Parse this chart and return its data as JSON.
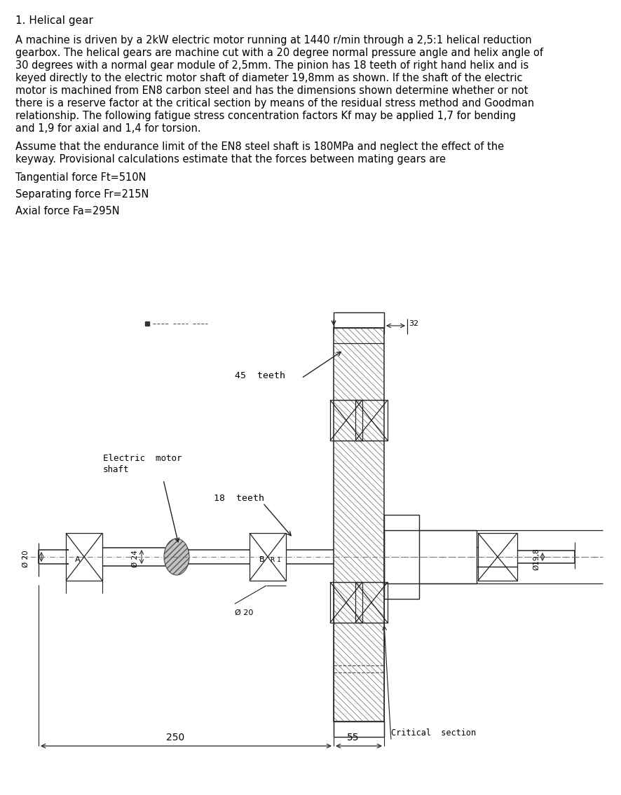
{
  "title": "1. Helical gear",
  "paragraph1": "A machine is driven by a 2kW electric motor running at 1440 r/min through a 2,5:1 helical reduction\ngearbox. The helical gears are machine cut with a 20 degree normal pressure angle and helix angle of\n30 degrees with a normal gear module of 2,5mm. The pinion has 18 teeth of right hand helix and is\nkeyed directly to the electric motor shaft of diameter 19,8mm as shown. If the shaft of the electric\nmotor is machined from EN8 carbon steel and has the dimensions shown determine whether or not\nthere is a reserve factor at the critical section by means of the residual stress method and Goodman\nrelationship. The following fatigue stress concentration factors Kf may be applied 1,7 for bending\nand 1,9 for axial and 1,4 for torsion.",
  "paragraph2": "Assume that the endurance limit of the EN8 steel shaft is 180MPa and neglect the effect of the\nkeyway. Provisional calculations estimate that the forces between mating gears are",
  "line1": "Tangential force Ft=510N",
  "line2": "Separating force Fr=215N",
  "line3": "Axial force Fa=295N",
  "bg_color": "#ffffff",
  "text_color": "#000000",
  "font_size_title": 11,
  "font_size_body": 10.5
}
